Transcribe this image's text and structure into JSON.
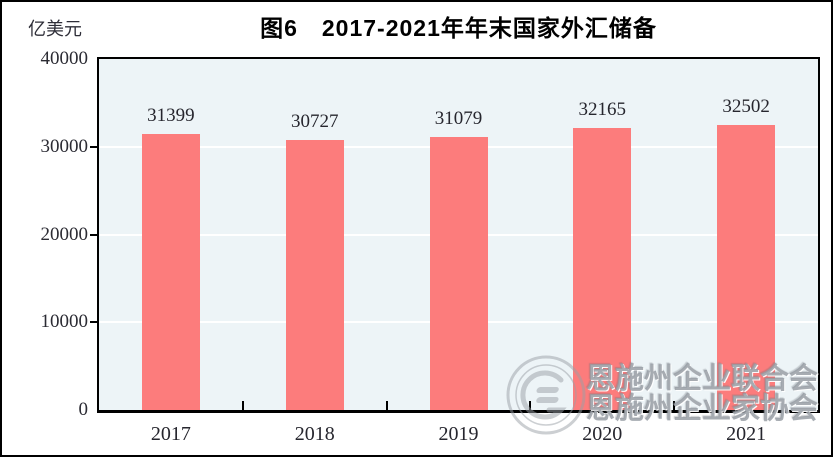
{
  "chart_data": {
    "type": "bar",
    "title": "图6　2017-2021年年末国家外汇储备",
    "ylabel_unit": "亿美元",
    "categories": [
      "2017",
      "2018",
      "2019",
      "2020",
      "2021"
    ],
    "values": [
      31399,
      30727,
      31079,
      32165,
      32502
    ],
    "data_labels": [
      "31399",
      "30727",
      "31079",
      "32165",
      "32502"
    ],
    "ylim": [
      0,
      40000
    ],
    "yticks": [
      0,
      10000,
      20000,
      30000,
      40000
    ],
    "grid": "horizontal",
    "legend": "none",
    "bar_color": "#fc7c7c",
    "plot_background": "#edf4f7",
    "gridline_color": "#ffffff"
  },
  "watermark": {
    "line1": "恩施州企业联合会",
    "line2": "恩施州企业家协会",
    "logo": "circular-emblem-logo"
  }
}
